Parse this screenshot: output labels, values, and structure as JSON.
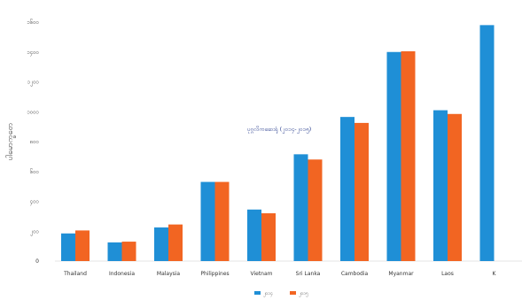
{
  "chart_data": {
    "type": "bar",
    "title": "",
    "xlabel": "",
    "ylabel": "ပါမောက္ခတေ",
    "categories": [
      "Thailand",
      "Indonesia",
      "Malaysia",
      "Philippines",
      "Vietnam",
      "Sri Lanka",
      "Cambodia",
      "Myanmar",
      "Laos",
      "K"
    ],
    "y_ticks": [
      "0",
      "၂၀၀",
      "၄၀၀",
      "၆၀၀",
      "၈၀၀",
      "၁၀၀၀",
      "၁၂၀၀",
      "၁၄၀၀",
      "၁၆၀၀"
    ],
    "ylim": [
      0,
      1600
    ],
    "series": [
      {
        "name": "၂၀၁၄",
        "values": [
          185,
          125,
          225,
          530,
          345,
          715,
          965,
          1400,
          1010,
          1580
        ]
      },
      {
        "name": "၂၀၁၅",
        "values": [
          205,
          130,
          245,
          530,
          320,
          680,
          925,
          1405,
          985,
          null
        ]
      }
    ],
    "annotation": "ပုဂ္ဂလိကဆေးရုံ (၂၀၁၄-၂၀၁၅)",
    "grid": false,
    "legend_position": "bottom",
    "colors": {
      "series_1": "#1f8fd6",
      "series_2": "#f26522",
      "annotation": "#2a3f8f"
    }
  }
}
